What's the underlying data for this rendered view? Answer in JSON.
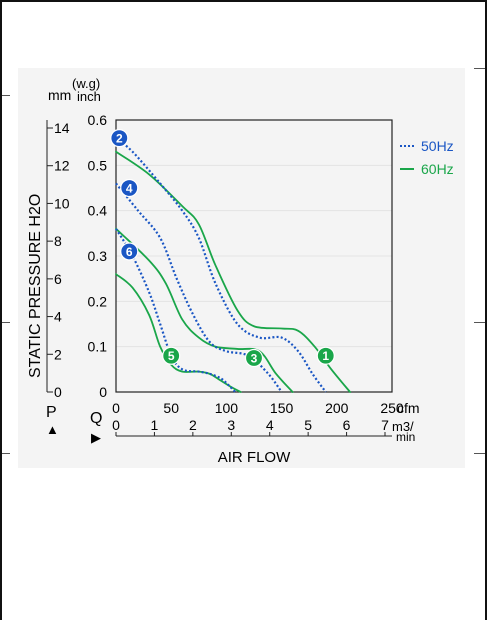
{
  "chart_data": {
    "type": "line",
    "ylabel": "STATIC PRESSURE H2O",
    "xlabel": "AIR FLOW",
    "pressure_units": {
      "mm": "mm",
      "inch": "inch",
      "wg": "(w.g)"
    },
    "flow_units": {
      "cfm": "cfm",
      "m3": "m3/",
      "min": "min"
    },
    "axis_letters": {
      "p": "P",
      "q": "Q"
    },
    "inch_ticks": [
      "0",
      "0.1",
      "0.2",
      "0.3",
      "0.4",
      "0.5",
      "0.6"
    ],
    "mm_ticks": [
      "0",
      "2",
      "4",
      "6",
      "8",
      "10",
      "12",
      "14"
    ],
    "cfm_ticks": [
      "0",
      "50",
      "100",
      "150",
      "200",
      "250"
    ],
    "m3min_ticks": [
      "0",
      "1",
      "2",
      "3",
      "4",
      "5",
      "6",
      "7"
    ],
    "xlim_cfm": [
      0,
      250
    ],
    "ylim_inch": [
      0,
      0.6
    ],
    "grid": true,
    "legend": {
      "placement": "right",
      "items": [
        {
          "label": "50Hz",
          "style": "dotted",
          "color": "#1a56c4"
        },
        {
          "label": "60Hz",
          "style": "solid",
          "color": "#1aa64a"
        }
      ]
    },
    "series": [
      {
        "id": "1",
        "freq": "60Hz",
        "color": "#1aa64a",
        "x": [
          0,
          30,
          60,
          75,
          90,
          110,
          125,
          150,
          165,
          180,
          195,
          212
        ],
        "y": [
          0.53,
          0.48,
          0.41,
          0.37,
          0.28,
          0.18,
          0.145,
          0.14,
          0.135,
          0.1,
          0.05,
          0
        ]
      },
      {
        "id": "2",
        "freq": "50Hz",
        "color": "#1a56c4",
        "x": [
          0,
          15,
          40,
          60,
          75,
          90,
          110,
          130,
          150,
          165,
          178,
          190
        ],
        "y": [
          0.56,
          0.53,
          0.46,
          0.4,
          0.34,
          0.24,
          0.15,
          0.12,
          0.12,
          0.09,
          0.04,
          0
        ]
      },
      {
        "id": "3",
        "freq": "60Hz",
        "color": "#1aa64a",
        "x": [
          0,
          30,
          45,
          60,
          75,
          90,
          110,
          130,
          145,
          160
        ],
        "y": [
          0.36,
          0.29,
          0.24,
          0.16,
          0.12,
          0.1,
          0.095,
          0.09,
          0.04,
          0
        ]
      },
      {
        "id": "4",
        "freq": "50Hz",
        "color": "#1a56c4",
        "x": [
          0,
          20,
          40,
          55,
          70,
          85,
          100,
          120,
          138,
          150
        ],
        "y": [
          0.46,
          0.4,
          0.34,
          0.25,
          0.17,
          0.11,
          0.09,
          0.08,
          0.04,
          0
        ]
      },
      {
        "id": "5",
        "freq": "60Hz",
        "color": "#1aa64a",
        "x": [
          0,
          15,
          30,
          40,
          50,
          60,
          75,
          85,
          95,
          105,
          113
        ],
        "y": [
          0.26,
          0.23,
          0.17,
          0.1,
          0.06,
          0.045,
          0.045,
          0.04,
          0.025,
          0.01,
          0
        ]
      },
      {
        "id": "6",
        "freq": "50Hz",
        "color": "#1a56c4",
        "x": [
          0,
          15,
          30,
          40,
          50,
          60,
          75,
          85,
          95,
          102,
          108
        ],
        "y": [
          0.36,
          0.3,
          0.22,
          0.15,
          0.08,
          0.05,
          0.045,
          0.04,
          0.03,
          0.015,
          0
        ]
      }
    ],
    "markers": [
      {
        "id": "1",
        "color": "#1aa64a",
        "x": 190,
        "y": 0.08
      },
      {
        "id": "2",
        "color": "#1a56c4",
        "x": 3,
        "y": 0.56
      },
      {
        "id": "3",
        "color": "#1aa64a",
        "x": 125,
        "y": 0.075
      },
      {
        "id": "4",
        "color": "#1a56c4",
        "x": 12,
        "y": 0.45
      },
      {
        "id": "5",
        "color": "#1aa64a",
        "x": 50,
        "y": 0.08
      },
      {
        "id": "6",
        "color": "#1a56c4",
        "x": 12,
        "y": 0.31
      }
    ]
  }
}
